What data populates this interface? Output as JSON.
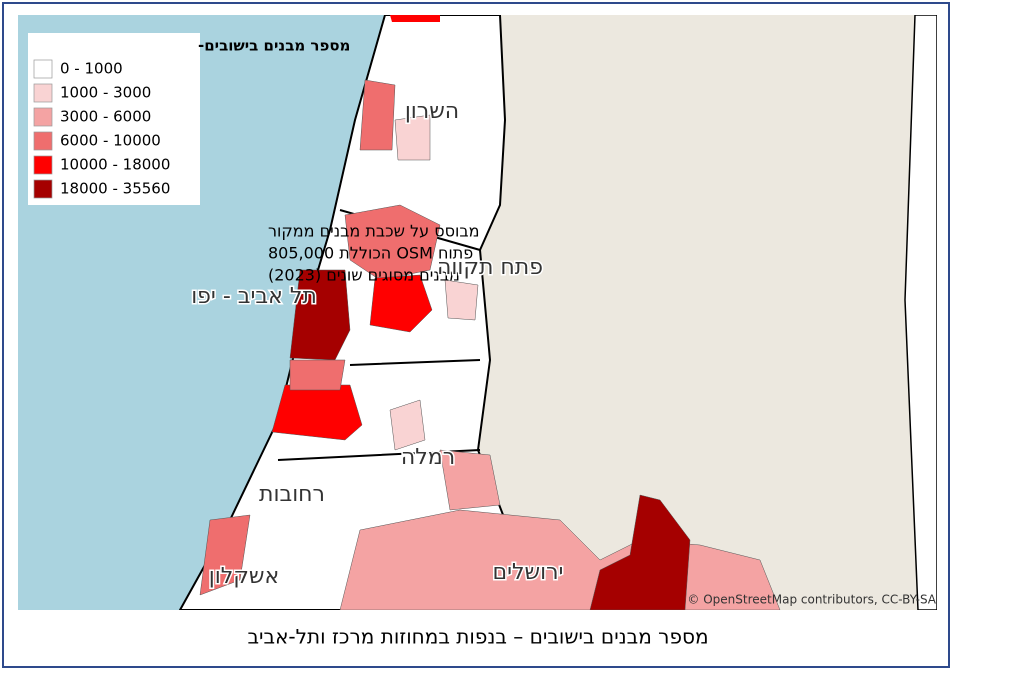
{
  "legend": {
    "title": "מספר מבנים בישובים-",
    "items": [
      {
        "label": "0 - 1000",
        "color": "#ffffff"
      },
      {
        "label": "1000 - 3000",
        "color": "#f9d3d3"
      },
      {
        "label": "3000 - 6000",
        "color": "#f4a3a3"
      },
      {
        "label": "6000 - 10000",
        "color": "#ef6e6e"
      },
      {
        "label": "10000 - 18000",
        "color": "#ff0000"
      },
      {
        "label": "18000 - 35560",
        "color": "#a50000"
      }
    ]
  },
  "note": [
    "מבוסס על שכבת מבנים ממקור",
    "פתוח  OSM הכוללת 805,000",
    "מבנים מסוגים שונים (2023)"
  ],
  "regions": [
    "השרון",
    "פתח תקווה",
    "תל אביב - יפו",
    "רמלה",
    "רחובות",
    "ירושלים",
    "אשקלון"
  ],
  "attribution": "© OpenStreetMap contributors, CC-BY-SA",
  "caption": "מספר מבנים בישובים – בנפות במחוזות מרכז ותל-אביב"
}
